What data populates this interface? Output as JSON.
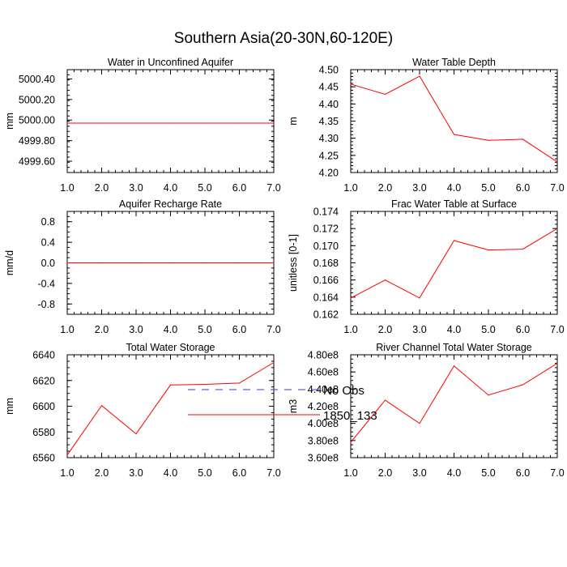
{
  "page": {
    "title": "Southern Asia(20-30N,60-120E)"
  },
  "colors": {
    "model": "#ff0000",
    "obs": "#3b3bbf",
    "axis": "#000000"
  },
  "legend": {
    "items": [
      {
        "label": "No Obs",
        "style": "dashed"
      },
      {
        "label": "1850_133",
        "style": "solid"
      }
    ]
  },
  "chart_data": [
    {
      "type": "line",
      "title": "Water in Unconfined Aquifer",
      "ylabel": "mm",
      "x": [
        1,
        2,
        3,
        4,
        5,
        6,
        7
      ],
      "values": [
        4999.97,
        4999.97,
        4999.97,
        4999.97,
        4999.97,
        4999.97,
        4999.97
      ],
      "xlim": [
        1,
        7
      ],
      "ylim": [
        4999.49,
        5000.49
      ],
      "xticks": [
        "1.0",
        "2.0",
        "3.0",
        "4.0",
        "5.0",
        "6.0",
        "7.0"
      ],
      "yticks": [
        {
          "v": 4999.6,
          "label": "4999.60"
        },
        {
          "v": 4999.8,
          "label": "4999.80"
        },
        {
          "v": 5000.0,
          "label": "5000.00"
        },
        {
          "v": 5000.2,
          "label": "5000.20"
        },
        {
          "v": 5000.4,
          "label": "5000.40"
        }
      ],
      "yminor": 0.05
    },
    {
      "type": "line",
      "title": "Water Table Depth",
      "ylabel": "m",
      "x": [
        1,
        2,
        3,
        4,
        5,
        6,
        7
      ],
      "values": [
        4.458,
        4.428,
        4.481,
        4.311,
        4.294,
        4.297,
        4.231
      ],
      "xlim": [
        1,
        7
      ],
      "ylim": [
        4.2,
        4.5
      ],
      "xticks": [
        "1.0",
        "2.0",
        "3.0",
        "4.0",
        "5.0",
        "6.0",
        "7.0"
      ],
      "yticks": [
        {
          "v": 4.2,
          "label": "4.20"
        },
        {
          "v": 4.25,
          "label": "4.25"
        },
        {
          "v": 4.3,
          "label": "4.30"
        },
        {
          "v": 4.35,
          "label": "4.35"
        },
        {
          "v": 4.4,
          "label": "4.40"
        },
        {
          "v": 4.45,
          "label": "4.45"
        },
        {
          "v": 4.5,
          "label": "4.50"
        }
      ],
      "yminor": 0.01
    },
    {
      "type": "line",
      "title": "Aquifer Recharge Rate",
      "ylabel": "mm/d",
      "x": [
        1,
        2,
        3,
        4,
        5,
        6,
        7
      ],
      "values": [
        0,
        0,
        0,
        0,
        0,
        0,
        0
      ],
      "xlim": [
        1,
        7
      ],
      "ylim": [
        -1,
        1
      ],
      "xticks": [
        "1.0",
        "2.0",
        "3.0",
        "4.0",
        "5.0",
        "6.0",
        "7.0"
      ],
      "yticks": [
        {
          "v": -0.8,
          "label": "-0.8"
        },
        {
          "v": -0.4,
          "label": "-0.4"
        },
        {
          "v": 0,
          "label": "0.0"
        },
        {
          "v": 0.4,
          "label": "0.4"
        },
        {
          "v": 0.8,
          "label": "0.8"
        }
      ],
      "yminor": 0.1
    },
    {
      "type": "line",
      "title": "Frac Water Table at Surface",
      "ylabel": "unitless [0-1]",
      "x": [
        1,
        2,
        3,
        4,
        5,
        6,
        7
      ],
      "values": [
        0.1639,
        0.166,
        0.1639,
        0.1706,
        0.1695,
        0.1696,
        0.172
      ],
      "xlim": [
        1,
        7
      ],
      "ylim": [
        0.162,
        0.174
      ],
      "xticks": [
        "1.0",
        "2.0",
        "3.0",
        "4.0",
        "5.0",
        "6.0",
        "7.0"
      ],
      "yticks": [
        {
          "v": 0.162,
          "label": "0.162"
        },
        {
          "v": 0.164,
          "label": "0.164"
        },
        {
          "v": 0.166,
          "label": "0.166"
        },
        {
          "v": 0.168,
          "label": "0.168"
        },
        {
          "v": 0.17,
          "label": "0.170"
        },
        {
          "v": 0.172,
          "label": "0.172"
        },
        {
          "v": 0.174,
          "label": "0.174"
        }
      ],
      "yminor": 0.0005
    },
    {
      "type": "line",
      "title": "Total Water Storage",
      "ylabel": "mm",
      "x": [
        1,
        2,
        3,
        4,
        5,
        6,
        7
      ],
      "values": [
        6562,
        6600.5,
        6578.5,
        6616.5,
        6617,
        6618,
        6634
      ],
      "xlim": [
        1,
        7
      ],
      "ylim": [
        6560,
        6640
      ],
      "xticks": [
        "1.0",
        "2.0",
        "3.0",
        "4.0",
        "5.0",
        "6.0",
        "7.0"
      ],
      "yticks": [
        {
          "v": 6560,
          "label": "6560"
        },
        {
          "v": 6580,
          "label": "6580"
        },
        {
          "v": 6600,
          "label": "6600"
        },
        {
          "v": 6620,
          "label": "6620"
        },
        {
          "v": 6640,
          "label": "6640"
        }
      ],
      "yminor": 5
    },
    {
      "type": "line",
      "title": "River Channel Total Water Storage",
      "ylabel": "m3",
      "x": [
        1,
        2,
        3,
        4,
        5,
        6,
        7
      ],
      "values": [
        378000000.0,
        427000000.0,
        400000000.0,
        467000000.0,
        433000000.0,
        445000000.0,
        470000000.0
      ],
      "xlim": [
        1,
        7
      ],
      "ylim": [
        360000000.0,
        480000000.0
      ],
      "xticks": [
        "1.0",
        "2.0",
        "3.0",
        "4.0",
        "5.0",
        "6.0",
        "7.0"
      ],
      "yticks": [
        {
          "v": 360000000.0,
          "label": "3.60e8"
        },
        {
          "v": 380000000.0,
          "label": "3.80e8"
        },
        {
          "v": 400000000.0,
          "label": "4.00e8"
        },
        {
          "v": 420000000.0,
          "label": "4.20e8"
        },
        {
          "v": 440000000.0,
          "label": "4.40e8"
        },
        {
          "v": 460000000.0,
          "label": "4.60e8"
        },
        {
          "v": 480000000.0,
          "label": "4.80e8"
        }
      ],
      "yminor": 5000000.0
    }
  ]
}
